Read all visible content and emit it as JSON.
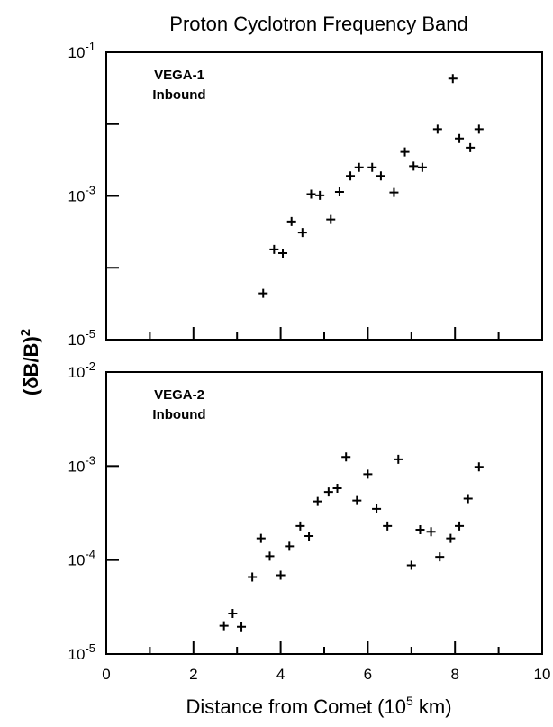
{
  "chart_data": {
    "title": "Proton Cyclotron Frequency Band",
    "xlabel": {
      "base": "Distance from Comet (10",
      "exp": "5",
      "unit": " km)"
    },
    "ylabel": {
      "base": "(δB/B)",
      "exp": "2"
    },
    "x_tick_labels": [
      "0",
      "2",
      "4",
      "6",
      "8",
      "10"
    ],
    "panels": [
      {
        "type": "scatter",
        "marker": "+",
        "label_lines": [
          "VEGA-1",
          "Inbound"
        ],
        "xlim": [
          0,
          10
        ],
        "ylim": [
          1e-05,
          0.1
        ],
        "y_scale": "log",
        "y_tick_labels": [
          {
            "base": "10",
            "exp": "-1"
          },
          {
            "base": "10",
            "exp": "-3"
          },
          {
            "base": "10",
            "exp": "-5"
          }
        ],
        "x": [
          3.6,
          3.85,
          4.05,
          4.25,
          4.5,
          4.7,
          4.9,
          5.15,
          5.35,
          5.6,
          5.8,
          6.1,
          6.3,
          6.6,
          6.85,
          7.05,
          7.25,
          7.6,
          7.95,
          8.1,
          8.35,
          8.55
        ],
        "y": [
          4.4e-05,
          0.00018,
          0.00016,
          0.00044,
          0.00031,
          0.00106,
          0.00102,
          0.00047,
          0.00114,
          0.0019,
          0.0025,
          0.0025,
          0.0019,
          0.00112,
          0.0041,
          0.0026,
          0.0025,
          0.0085,
          0.043,
          0.0063,
          0.0047,
          0.0085
        ]
      },
      {
        "type": "scatter",
        "marker": "+",
        "label_lines": [
          "VEGA-2",
          "Inbound"
        ],
        "xlim": [
          0,
          10
        ],
        "ylim": [
          1e-05,
          0.01
        ],
        "y_scale": "log",
        "y_tick_labels": [
          {
            "base": "10",
            "exp": "-2"
          },
          {
            "base": "10",
            "exp": "-3"
          },
          {
            "base": "10",
            "exp": "-4"
          },
          {
            "base": "10",
            "exp": "-5"
          }
        ],
        "x": [
          2.7,
          2.9,
          3.1,
          3.35,
          3.55,
          3.75,
          4.0,
          4.2,
          4.45,
          4.65,
          4.85,
          5.1,
          5.3,
          5.5,
          5.75,
          6.0,
          6.2,
          6.45,
          6.7,
          7.0,
          7.2,
          7.45,
          7.65,
          7.9,
          8.1,
          8.3,
          8.55
        ],
        "y": [
          2e-05,
          2.7e-05,
          1.95e-05,
          6.6e-05,
          0.00017,
          0.00011,
          6.9e-05,
          0.00014,
          0.00023,
          0.00018,
          0.00042,
          0.00053,
          0.00058,
          0.00125,
          0.00043,
          0.00082,
          0.00035,
          0.00023,
          0.00118,
          8.8e-05,
          0.00021,
          0.0002,
          0.000108,
          0.00017,
          0.00023,
          0.00045,
          0.00098
        ]
      }
    ]
  }
}
